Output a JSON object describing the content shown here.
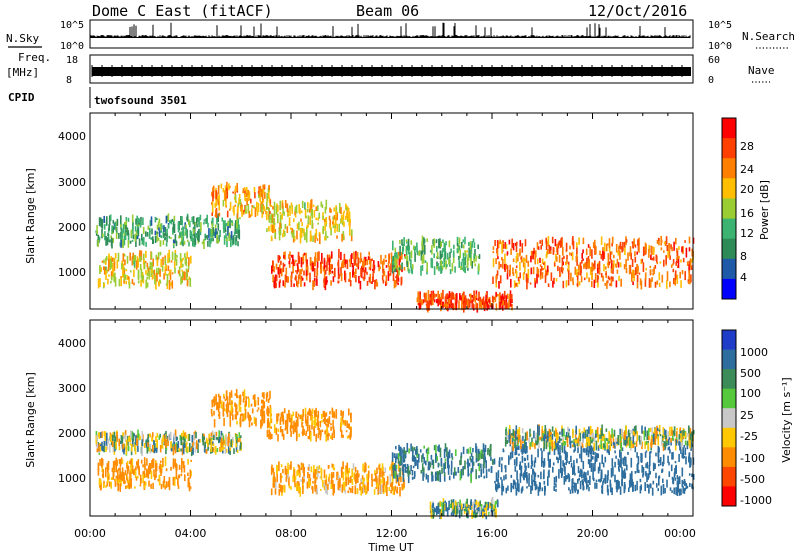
{
  "header": {
    "station": "Dome C East (fitACF)",
    "beam": "Beam 06",
    "date": "12/Oct/2016"
  },
  "sky_panel": {
    "left_label": "N.Sky",
    "left_ticks": [
      "10^5",
      "10^0"
    ],
    "right_ticks": [
      "10^5",
      "10^0"
    ],
    "right_label": "N.Search"
  },
  "freq_panel": {
    "left_label_1": "Freq.",
    "left_label_2": "[MHz]",
    "left_ticks": [
      "18",
      "8"
    ],
    "right_ticks": [
      "60",
      "0"
    ],
    "right_label": "Nave"
  },
  "cpid_panel": {
    "left_label": "CPID",
    "program": "twofsound 3501"
  },
  "power_panel": {
    "ylabel": "Slant Range [km]",
    "yticks": [
      "4000",
      "3000",
      "2000",
      "1000"
    ],
    "cbar_label": "Power [dB]",
    "cbar_ticks": [
      "28",
      "24",
      "20",
      "16",
      "12",
      "8",
      "4"
    ],
    "cbar_colors": [
      "#ff0000",
      "#ff4000",
      "#ff7f00",
      "#ffbf00",
      "#9acd32",
      "#3cb371",
      "#2e8b57",
      "#1e5aa8",
      "#0000ff"
    ]
  },
  "velocity_panel": {
    "ylabel": "Slant Range [km]",
    "yticks": [
      "4000",
      "3000",
      "2000",
      "1000"
    ],
    "cbar_label": "Velocity [m s⁻¹]",
    "cbar_ticks": [
      "1000",
      "500",
      "100",
      "25",
      "-25",
      "-100",
      "-500",
      "-1000"
    ],
    "cbar_colors": [
      "#1e3cc8",
      "#2d6e9e",
      "#3c8c5a",
      "#55c83c",
      "#c8c8c8",
      "#ffc800",
      "#ff8c00",
      "#ff4600",
      "#ff0000"
    ]
  },
  "x_axis": {
    "ticks": [
      "00:00",
      "04:00",
      "08:00",
      "12:00",
      "16:00",
      "20:00",
      "00:00"
    ],
    "label": "Time UT"
  },
  "chart_data": {
    "type": "heatmap",
    "x_range_hours": [
      0,
      24
    ],
    "y_range_km": [
      180,
      4500
    ],
    "power_scale_db": [
      0,
      30
    ],
    "velocity_scale_ms": [
      -1000,
      1000
    ],
    "power_regions": [
      {
        "t0": 0.2,
        "t1": 6.0,
        "r0": 1600,
        "r1": 2200,
        "power": 10
      },
      {
        "t0": 0.3,
        "t1": 4.0,
        "r0": 700,
        "r1": 1400,
        "power": 18
      },
      {
        "t0": 4.8,
        "t1": 7.2,
        "r0": 2200,
        "r1": 2900,
        "power": 20
      },
      {
        "t0": 7.0,
        "t1": 10.4,
        "r0": 1700,
        "r1": 2500,
        "power": 18
      },
      {
        "t0": 7.2,
        "t1": 12.5,
        "r0": 700,
        "r1": 1400,
        "power": 26
      },
      {
        "t0": 12.0,
        "t1": 15.5,
        "r0": 1000,
        "r1": 1700,
        "power": 12
      },
      {
        "t0": 13.0,
        "t1": 16.8,
        "r0": 200,
        "r1": 500,
        "power": 26
      },
      {
        "t0": 16.0,
        "t1": 24.0,
        "r0": 700,
        "r1": 1700,
        "power": 24
      }
    ],
    "velocity_regions": [
      {
        "t0": 0.2,
        "t1": 6.0,
        "r0": 1600,
        "r1": 2000,
        "velocity": 0
      },
      {
        "t0": 0.3,
        "t1": 4.0,
        "r0": 800,
        "r1": 1400,
        "velocity": -200
      },
      {
        "t0": 4.8,
        "t1": 7.2,
        "r0": 2200,
        "r1": 2900,
        "velocity": -200
      },
      {
        "t0": 7.0,
        "t1": 10.4,
        "r0": 1900,
        "r1": 2500,
        "velocity": -200
      },
      {
        "t0": 7.2,
        "t1": 12.5,
        "r0": 700,
        "r1": 1300,
        "velocity": -150
      },
      {
        "t0": 12.0,
        "t1": 16.0,
        "r0": 1000,
        "r1": 1700,
        "velocity": 150
      },
      {
        "t0": 13.5,
        "t1": 16.2,
        "r0": 200,
        "r1": 500,
        "velocity": 60
      },
      {
        "t0": 16.0,
        "t1": 24.0,
        "r0": 700,
        "r1": 1700,
        "velocity": 300
      },
      {
        "t0": 16.5,
        "t1": 24.0,
        "r0": 1700,
        "r1": 2100,
        "velocity": 0
      }
    ]
  }
}
